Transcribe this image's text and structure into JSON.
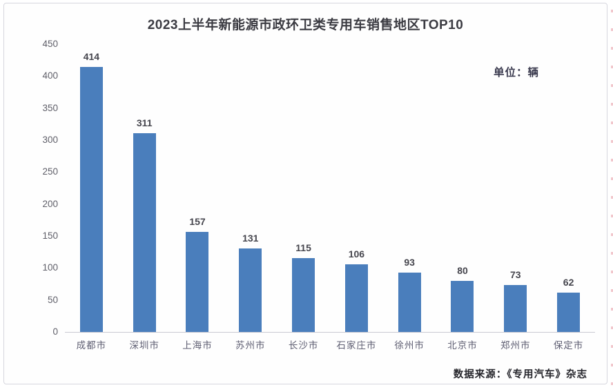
{
  "chart_data": {
    "type": "bar",
    "title": "2023上半年新能源市政环卫类专用车销售地区TOP10",
    "unit_label": "单位：辆",
    "source": "数据来源：《专用汽车》杂志",
    "categories": [
      "成都市",
      "深圳市",
      "上海市",
      "苏州市",
      "长沙市",
      "石家庄市",
      "徐州市",
      "北京市",
      "郑州市",
      "保定市"
    ],
    "values": [
      414,
      311,
      157,
      131,
      115,
      106,
      93,
      80,
      73,
      62
    ],
    "y_ticks": [
      450,
      400,
      350,
      300,
      250,
      200,
      150,
      100,
      50,
      0
    ],
    "ylim": [
      0,
      450
    ],
    "xlabel": "",
    "ylabel": "",
    "bar_color": "#4a7ebc",
    "grid": "off",
    "legend": "none",
    "value_labels": "above bars"
  }
}
